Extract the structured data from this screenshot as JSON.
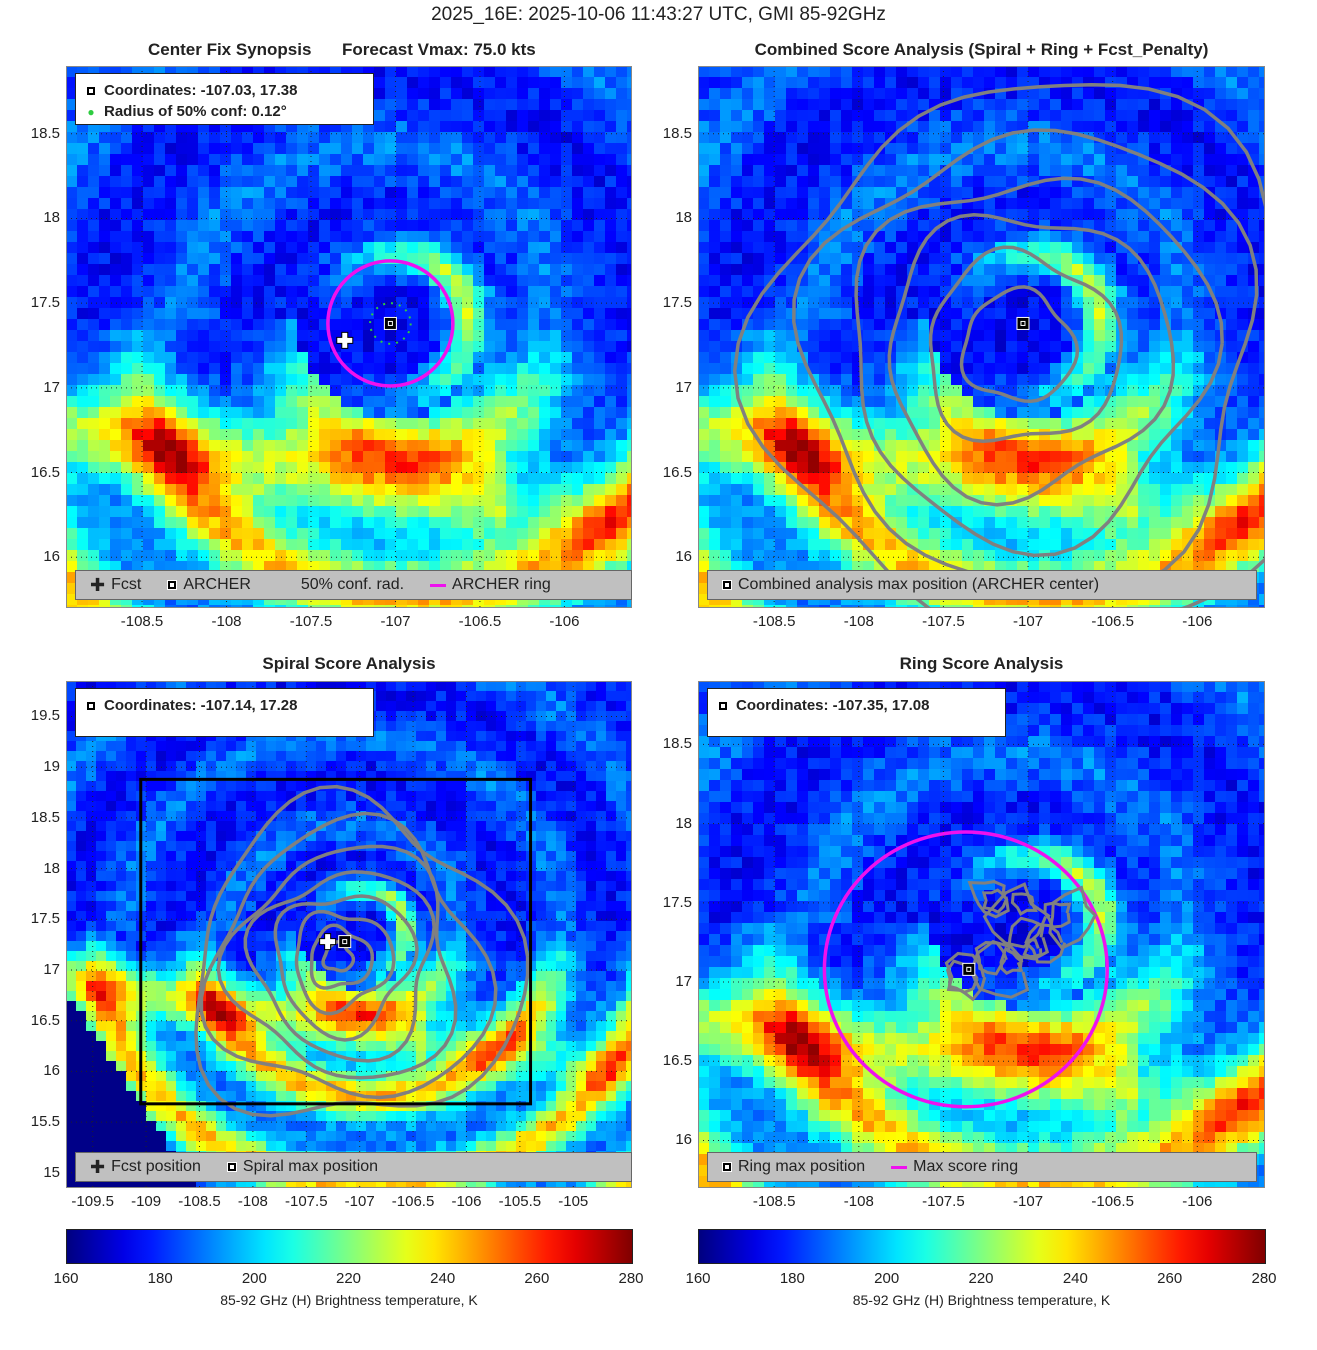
{
  "suptitle": "2025_16E: 2025-10-06 11:43:27 UTC, GMI 85-92GHz",
  "panels": {
    "synopsis": {
      "title_left": "Center Fix Synopsis",
      "title_right": "Forecast Vmax: 75.0 kts",
      "info": {
        "coords": "Coordinates: -107.03, 17.38",
        "radius": "Radius of 50% conf: 0.12°"
      },
      "legend": {
        "fcst": "Fcst",
        "archer": "ARCHER",
        "conf": "50% conf. rad.",
        "ring": "ARCHER ring"
      },
      "xticks": [
        "-108.5",
        "-108",
        "-107.5",
        "-107",
        "-106.5",
        "-106"
      ],
      "yticks": [
        "18.5",
        "18",
        "17.5",
        "17",
        "16.5",
        "16"
      ]
    },
    "combined": {
      "title": "Combined Score Analysis (Spiral + Ring + Fcst_Penalty)",
      "legend": {
        "max": "Combined analysis max position (ARCHER center)"
      },
      "xticks": [
        "-108.5",
        "-108",
        "-107.5",
        "-107",
        "-106.5",
        "-106"
      ],
      "yticks": [
        "18.5",
        "18",
        "17.5",
        "17",
        "16.5",
        "16"
      ]
    },
    "spiral": {
      "title": "Spiral Score Analysis",
      "info": {
        "coords": "Coordinates: -107.14, 17.28"
      },
      "legend": {
        "fcst": "Fcst position",
        "max": "Spiral max position"
      },
      "xticks": [
        "-109.5",
        "-109",
        "-108.5",
        "-108",
        "-107.5",
        "-107",
        "-106.5",
        "-106",
        "-105.5",
        "-105"
      ],
      "yticks": [
        "19.5",
        "19",
        "18.5",
        "18",
        "17.5",
        "17",
        "16.5",
        "16",
        "15.5",
        "15"
      ]
    },
    "ring": {
      "title": "Ring Score Analysis",
      "info": {
        "coords": "Coordinates: -107.35, 17.08"
      },
      "legend": {
        "max": "Ring max position",
        "ring": "Max score ring"
      },
      "xticks": [
        "-108.5",
        "-108",
        "-107.5",
        "-107",
        "-106.5",
        "-106"
      ],
      "yticks": [
        "18.5",
        "18",
        "17.5",
        "17",
        "16.5",
        "16"
      ]
    }
  },
  "colorbar": {
    "ticks": [
      "160",
      "180",
      "200",
      "220",
      "240",
      "260",
      "280"
    ],
    "label": "85-92 GHz (H) Brightness temperature, K"
  },
  "chart_data": [
    {
      "type": "heatmap",
      "title": "Center Fix Synopsis",
      "subtitle": "Forecast Vmax: 75.0 kts",
      "xlim": [
        -108.95,
        -105.6
      ],
      "ylim": [
        15.7,
        18.9
      ],
      "xticks": [
        -108.5,
        -108,
        -107.5,
        -107,
        -106.5,
        -106
      ],
      "yticks": [
        18.5,
        18,
        17.5,
        17,
        16.5,
        16
      ],
      "archer_center": [
        -107.03,
        17.38
      ],
      "forecast_position": [
        -107.3,
        17.28
      ],
      "conf_radius_deg": 0.12,
      "archer_ring_radius_deg": 0.37,
      "units": "K",
      "crange": [
        160,
        280
      ]
    },
    {
      "type": "heatmap",
      "title": "Combined Score Analysis (Spiral + Ring + Fcst_Penalty)",
      "xlim": [
        -108.95,
        -105.6
      ],
      "ylim": [
        15.7,
        18.9
      ],
      "archer_center": [
        -107.03,
        17.38
      ],
      "contours": "combined score"
    },
    {
      "type": "heatmap",
      "title": "Spiral Score Analysis",
      "xlim": [
        -109.75,
        -104.45
      ],
      "ylim": [
        14.85,
        19.85
      ],
      "spiral_max": [
        -107.14,
        17.28
      ],
      "forecast_position": [
        -107.3,
        17.28
      ],
      "search_box": {
        "lon": [
          -109.05,
          -105.4
        ],
        "lat": [
          15.68,
          18.88
        ]
      }
    },
    {
      "type": "heatmap",
      "title": "Ring Score Analysis",
      "xlim": [
        -108.95,
        -105.6
      ],
      "ylim": [
        15.7,
        18.9
      ],
      "ring_max": [
        -107.35,
        17.08
      ],
      "ring_radius_deg": 0.8
    }
  ]
}
